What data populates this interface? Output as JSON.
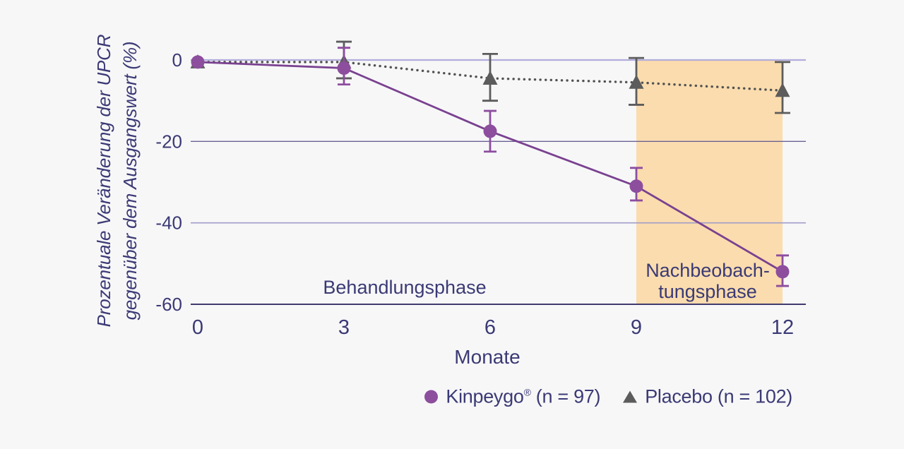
{
  "figure": {
    "background_color": "#f7f7f8",
    "text_color": "#3b3a75"
  },
  "chart_data": {
    "type": "line",
    "title": "",
    "xlabel": "Monate",
    "ylabel_lines": [
      "Prozentuale Veränderung der UPCR",
      "gegenüber dem Ausgangswert (%)"
    ],
    "xlim": [
      0,
      12
    ],
    "ylim": [
      0,
      -60
    ],
    "xticks": [
      0,
      3,
      6,
      9,
      12
    ],
    "yticks": [
      0,
      -20,
      -40,
      -60
    ],
    "grid": "horizontal",
    "legend_position": "bottom-right",
    "text_color": "#3b3a75",
    "axis_color": "#3f3b6e",
    "gridlines": [
      {
        "value": 0,
        "color": "#b2addc",
        "width": 2.2
      },
      {
        "value": -20,
        "color": "#6b6294",
        "width": 1.4
      },
      {
        "value": -40,
        "color": "#a29cc9",
        "width": 1.6
      }
    ],
    "band": {
      "x_start": 9,
      "x_end": 12,
      "color": "#fadcae",
      "label": "Nachbeobachtungsphase"
    },
    "annotations": {
      "treatment_phase": "Behandlungsphase",
      "followup_phase_lines": [
        "Nachbeobach-",
        "tungsphase"
      ]
    },
    "series": [
      {
        "name": "Placebo (n = 102)",
        "marker": "triangle",
        "color": "#5c5c5c",
        "line_color": "#525252",
        "line_style": "dotted",
        "cap_half_width": 11,
        "points": [
          {
            "x": 0,
            "y": -0.5,
            "err": null
          },
          {
            "x": 3,
            "y": -0.5,
            "err": [
              4.5,
              -4.5
            ]
          },
          {
            "x": 6,
            "y": -4.5,
            "err": [
              1.5,
              -10
            ]
          },
          {
            "x": 9,
            "y": -5.5,
            "err": [
              0.5,
              -11
            ]
          },
          {
            "x": 12,
            "y": -7.5,
            "err": [
              -0.5,
              -13
            ]
          }
        ]
      },
      {
        "name": "Kinpeygo® (n = 97)",
        "marker": "circle",
        "color": "#8d4e9e",
        "line_color": "#7a4190",
        "line_style": "solid",
        "cap_half_width": 9,
        "points": [
          {
            "x": 0,
            "y": -0.5,
            "err": null
          },
          {
            "x": 3,
            "y": -2,
            "err": [
              3,
              -6
            ]
          },
          {
            "x": 6,
            "y": -17.5,
            "err": [
              -12.5,
              -22.5
            ]
          },
          {
            "x": 9,
            "y": -31,
            "err": [
              -26.5,
              -34.5
            ]
          },
          {
            "x": 12,
            "y": -52,
            "err": [
              -48,
              -55.5
            ]
          }
        ]
      }
    ]
  },
  "legend": {
    "kinpeygo": {
      "name": "Kinpeygo",
      "sup": "®",
      "count": " (n = 97)"
    },
    "placebo": {
      "label": "Placebo (n = 102)"
    }
  }
}
